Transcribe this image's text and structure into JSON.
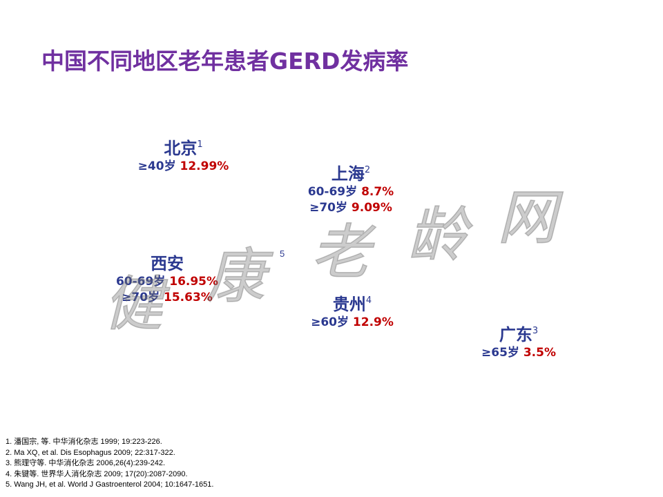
{
  "title": "中国不同地区老年患者GERD发病率",
  "regions": [
    {
      "name": "北京",
      "ref": "1",
      "stats": [
        {
          "age": "≥40岁",
          "rate": "12.99%"
        }
      ]
    },
    {
      "name": "上海",
      "ref": "2",
      "stats": [
        {
          "age": "60-69岁",
          "rate": "8.7%"
        },
        {
          "age": "≥70岁",
          "rate": "9.09%"
        }
      ]
    },
    {
      "name": "西安",
      "ref": "",
      "stats": [
        {
          "age": "60-69岁",
          "rate": "16.95%"
        },
        {
          "age": "≥70岁",
          "rate": "15.63%"
        }
      ]
    },
    {
      "name": "贵州",
      "ref": "4",
      "stats": [
        {
          "age": "≥60岁",
          "rate": "12.9%"
        }
      ]
    },
    {
      "name": "广东",
      "ref": "3",
      "stats": [
        {
          "age": "≥65岁",
          "rate": "3.5%"
        }
      ]
    }
  ],
  "floating_ref": "5",
  "references": [
    "1. 潘国宗, 等. 中华消化杂志 1999; 19:223-226.",
    "2. Ma XQ, et al. Dis Esophagus 2009; 22:317-322.",
    "3. 熊理守等. 中华消化杂志 2006,26(4):239-242.",
    "4. 朱键等. 世界华人消化杂志 2009; 17(20):2087-2090.",
    "5. Wang JH, et al. World J Gastroenterol 2004; 10:1647-1651."
  ],
  "watermark": [
    "健",
    "康",
    "老",
    "龄",
    "网"
  ],
  "colors": {
    "title": "#7030a0",
    "label": "#2b3990",
    "rate": "#c00000"
  }
}
